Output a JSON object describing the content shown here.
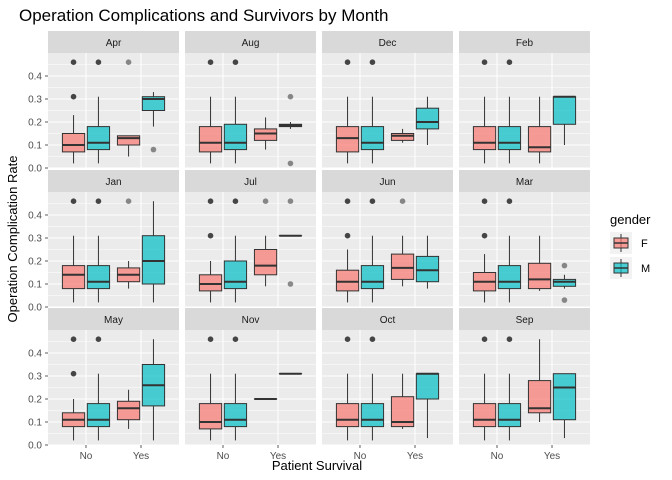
{
  "colors": {
    "F": "#F8766D",
    "M": "#00BFC4",
    "panel_bg": "#EBEBEB",
    "strip_bg": "#D9D9D9",
    "grid": "#FFFFFF",
    "outline": "#333333"
  },
  "chart_data": {
    "type": "boxplot",
    "title": "Operation Complications and Survivors by Month",
    "xlabel": "Patient Survival",
    "ylabel": "Operation Complication Rate",
    "categories": [
      "No",
      "Yes"
    ],
    "ylim": [
      0,
      0.5
    ],
    "yticks": [
      0.0,
      0.1,
      0.2,
      0.3,
      0.4
    ],
    "ytick_labels": [
      "0.0",
      "0.1",
      "0.2",
      "0.3",
      "0.4"
    ],
    "grid": true,
    "legend": {
      "title": "gender",
      "position": "right",
      "entries": [
        "F",
        "M"
      ]
    },
    "box_alpha": 0.7,
    "panels": [
      {
        "facet": "Apr",
        "boxes": [
          {
            "survival": "No",
            "gender": "F",
            "min": 0.02,
            "q1": 0.07,
            "median": 0.1,
            "q3": 0.15,
            "max": 0.23,
            "outliers": [
              0.31,
              0.46
            ]
          },
          {
            "survival": "No",
            "gender": "M",
            "min": 0.02,
            "q1": 0.08,
            "median": 0.11,
            "q3": 0.18,
            "max": 0.31,
            "outliers": [
              0.46
            ]
          },
          {
            "survival": "Yes",
            "gender": "F",
            "min": 0.05,
            "q1": 0.1,
            "median": 0.13,
            "q3": 0.14,
            "max": 0.14,
            "outliers": [
              0.46
            ]
          },
          {
            "survival": "Yes",
            "gender": "M",
            "min": 0.18,
            "q1": 0.25,
            "median": 0.3,
            "q3": 0.31,
            "max": 0.33,
            "outliers": [
              0.08
            ]
          }
        ]
      },
      {
        "facet": "Aug",
        "boxes": [
          {
            "survival": "No",
            "gender": "F",
            "min": 0.02,
            "q1": 0.07,
            "median": 0.11,
            "q3": 0.18,
            "max": 0.31,
            "outliers": [
              0.46
            ]
          },
          {
            "survival": "No",
            "gender": "M",
            "min": 0.02,
            "q1": 0.08,
            "median": 0.11,
            "q3": 0.19,
            "max": 0.31,
            "outliers": [
              0.46
            ]
          },
          {
            "survival": "Yes",
            "gender": "F",
            "min": 0.08,
            "q1": 0.12,
            "median": 0.15,
            "q3": 0.17,
            "max": 0.22,
            "outliers": []
          },
          {
            "survival": "Yes",
            "gender": "M",
            "min": 0.17,
            "q1": 0.18,
            "median": 0.185,
            "q3": 0.19,
            "max": 0.2,
            "outliers": [
              0.02,
              0.31
            ]
          }
        ]
      },
      {
        "facet": "Dec",
        "boxes": [
          {
            "survival": "No",
            "gender": "F",
            "min": 0.02,
            "q1": 0.07,
            "median": 0.13,
            "q3": 0.18,
            "max": 0.31,
            "outliers": [
              0.46
            ]
          },
          {
            "survival": "No",
            "gender": "M",
            "min": 0.02,
            "q1": 0.08,
            "median": 0.11,
            "q3": 0.18,
            "max": 0.31,
            "outliers": [
              0.46
            ]
          },
          {
            "survival": "Yes",
            "gender": "F",
            "min": 0.11,
            "q1": 0.12,
            "median": 0.14,
            "q3": 0.15,
            "max": 0.17,
            "outliers": []
          },
          {
            "survival": "Yes",
            "gender": "M",
            "min": 0.1,
            "q1": 0.17,
            "median": 0.2,
            "q3": 0.26,
            "max": 0.31,
            "outliers": []
          }
        ]
      },
      {
        "facet": "Feb",
        "boxes": [
          {
            "survival": "No",
            "gender": "F",
            "min": 0.02,
            "q1": 0.08,
            "median": 0.11,
            "q3": 0.18,
            "max": 0.31,
            "outliers": [
              0.46
            ]
          },
          {
            "survival": "No",
            "gender": "M",
            "min": 0.02,
            "q1": 0.08,
            "median": 0.11,
            "q3": 0.18,
            "max": 0.31,
            "outliers": [
              0.46
            ]
          },
          {
            "survival": "Yes",
            "gender": "F",
            "min": 0.02,
            "q1": 0.07,
            "median": 0.09,
            "q3": 0.18,
            "max": 0.31,
            "outliers": []
          },
          {
            "survival": "Yes",
            "gender": "M",
            "min": 0.1,
            "q1": 0.19,
            "median": 0.31,
            "q3": 0.31,
            "max": 0.31,
            "outliers": []
          }
        ]
      },
      {
        "facet": "Jan",
        "boxes": [
          {
            "survival": "No",
            "gender": "F",
            "min": 0.02,
            "q1": 0.08,
            "median": 0.14,
            "q3": 0.18,
            "max": 0.31,
            "outliers": [
              0.46
            ]
          },
          {
            "survival": "No",
            "gender": "M",
            "min": 0.02,
            "q1": 0.08,
            "median": 0.11,
            "q3": 0.18,
            "max": 0.31,
            "outliers": [
              0.46
            ]
          },
          {
            "survival": "Yes",
            "gender": "F",
            "min": 0.08,
            "q1": 0.11,
            "median": 0.14,
            "q3": 0.17,
            "max": 0.2,
            "outliers": [
              0.46
            ]
          },
          {
            "survival": "Yes",
            "gender": "M",
            "min": 0.02,
            "q1": 0.1,
            "median": 0.2,
            "q3": 0.31,
            "max": 0.46,
            "outliers": []
          }
        ]
      },
      {
        "facet": "Jul",
        "boxes": [
          {
            "survival": "No",
            "gender": "F",
            "min": 0.02,
            "q1": 0.07,
            "median": 0.1,
            "q3": 0.14,
            "max": 0.2,
            "outliers": [
              0.31,
              0.46
            ]
          },
          {
            "survival": "No",
            "gender": "M",
            "min": 0.02,
            "q1": 0.08,
            "median": 0.11,
            "q3": 0.2,
            "max": 0.31,
            "outliers": [
              0.46
            ]
          },
          {
            "survival": "Yes",
            "gender": "F",
            "min": 0.09,
            "q1": 0.14,
            "median": 0.18,
            "q3": 0.25,
            "max": 0.31,
            "outliers": [
              0.46
            ]
          },
          {
            "survival": "Yes",
            "gender": "M",
            "min": 0.31,
            "q1": 0.31,
            "median": 0.31,
            "q3": 0.31,
            "max": 0.31,
            "outliers": [
              0.1,
              0.46
            ]
          }
        ]
      },
      {
        "facet": "Jun",
        "boxes": [
          {
            "survival": "No",
            "gender": "F",
            "min": 0.02,
            "q1": 0.07,
            "median": 0.11,
            "q3": 0.16,
            "max": 0.25,
            "outliers": [
              0.31,
              0.46
            ]
          },
          {
            "survival": "No",
            "gender": "M",
            "min": 0.02,
            "q1": 0.08,
            "median": 0.11,
            "q3": 0.18,
            "max": 0.31,
            "outliers": [
              0.46
            ]
          },
          {
            "survival": "Yes",
            "gender": "F",
            "min": 0.09,
            "q1": 0.12,
            "median": 0.17,
            "q3": 0.23,
            "max": 0.31,
            "outliers": [
              0.46
            ]
          },
          {
            "survival": "Yes",
            "gender": "M",
            "min": 0.08,
            "q1": 0.11,
            "median": 0.16,
            "q3": 0.22,
            "max": 0.31,
            "outliers": []
          }
        ]
      },
      {
        "facet": "Mar",
        "boxes": [
          {
            "survival": "No",
            "gender": "F",
            "min": 0.02,
            "q1": 0.07,
            "median": 0.11,
            "q3": 0.15,
            "max": 0.23,
            "outliers": [
              0.31,
              0.46
            ]
          },
          {
            "survival": "No",
            "gender": "M",
            "min": 0.02,
            "q1": 0.08,
            "median": 0.11,
            "q3": 0.18,
            "max": 0.31,
            "outliers": [
              0.46
            ]
          },
          {
            "survival": "Yes",
            "gender": "F",
            "min": 0.07,
            "q1": 0.08,
            "median": 0.12,
            "q3": 0.19,
            "max": 0.31,
            "outliers": []
          },
          {
            "survival": "Yes",
            "gender": "M",
            "min": 0.08,
            "q1": 0.09,
            "median": 0.11,
            "q3": 0.12,
            "max": 0.14,
            "outliers": [
              0.03,
              0.18
            ]
          }
        ]
      },
      {
        "facet": "May",
        "boxes": [
          {
            "survival": "No",
            "gender": "F",
            "min": 0.02,
            "q1": 0.08,
            "median": 0.11,
            "q3": 0.14,
            "max": 0.2,
            "outliers": [
              0.31,
              0.46
            ]
          },
          {
            "survival": "No",
            "gender": "M",
            "min": 0.02,
            "q1": 0.08,
            "median": 0.11,
            "q3": 0.18,
            "max": 0.31,
            "outliers": [
              0.46
            ]
          },
          {
            "survival": "Yes",
            "gender": "F",
            "min": 0.07,
            "q1": 0.11,
            "median": 0.16,
            "q3": 0.19,
            "max": 0.24,
            "outliers": []
          },
          {
            "survival": "Yes",
            "gender": "M",
            "min": 0.02,
            "q1": 0.17,
            "median": 0.26,
            "q3": 0.35,
            "max": 0.46,
            "outliers": []
          }
        ]
      },
      {
        "facet": "Nov",
        "boxes": [
          {
            "survival": "No",
            "gender": "F",
            "min": 0.02,
            "q1": 0.07,
            "median": 0.1,
            "q3": 0.18,
            "max": 0.31,
            "outliers": [
              0.46
            ]
          },
          {
            "survival": "No",
            "gender": "M",
            "min": 0.02,
            "q1": 0.08,
            "median": 0.11,
            "q3": 0.18,
            "max": 0.31,
            "outliers": [
              0.46
            ]
          },
          {
            "survival": "Yes",
            "gender": "F",
            "min": 0.2,
            "q1": 0.2,
            "median": 0.2,
            "q3": 0.2,
            "max": 0.2,
            "outliers": []
          },
          {
            "survival": "Yes",
            "gender": "M",
            "min": 0.31,
            "q1": 0.31,
            "median": 0.31,
            "q3": 0.31,
            "max": 0.31,
            "outliers": []
          }
        ]
      },
      {
        "facet": "Oct",
        "boxes": [
          {
            "survival": "No",
            "gender": "F",
            "min": 0.02,
            "q1": 0.08,
            "median": 0.11,
            "q3": 0.18,
            "max": 0.31,
            "outliers": [
              0.46
            ]
          },
          {
            "survival": "No",
            "gender": "M",
            "min": 0.02,
            "q1": 0.08,
            "median": 0.11,
            "q3": 0.18,
            "max": 0.31,
            "outliers": [
              0.46
            ]
          },
          {
            "survival": "Yes",
            "gender": "F",
            "min": 0.07,
            "q1": 0.08,
            "median": 0.1,
            "q3": 0.21,
            "max": 0.31,
            "outliers": []
          },
          {
            "survival": "Yes",
            "gender": "M",
            "min": 0.03,
            "q1": 0.2,
            "median": 0.31,
            "q3": 0.31,
            "max": 0.31,
            "outliers": []
          }
        ]
      },
      {
        "facet": "Sep",
        "boxes": [
          {
            "survival": "No",
            "gender": "F",
            "min": 0.02,
            "q1": 0.08,
            "median": 0.11,
            "q3": 0.18,
            "max": 0.31,
            "outliers": [
              0.46
            ]
          },
          {
            "survival": "No",
            "gender": "M",
            "min": 0.02,
            "q1": 0.08,
            "median": 0.11,
            "q3": 0.18,
            "max": 0.31,
            "outliers": [
              0.46
            ]
          },
          {
            "survival": "Yes",
            "gender": "F",
            "min": 0.1,
            "q1": 0.14,
            "median": 0.16,
            "q3": 0.28,
            "max": 0.46,
            "outliers": []
          },
          {
            "survival": "Yes",
            "gender": "M",
            "min": 0.03,
            "q1": 0.11,
            "median": 0.25,
            "q3": 0.31,
            "max": 0.31,
            "outliers": []
          }
        ]
      }
    ]
  }
}
